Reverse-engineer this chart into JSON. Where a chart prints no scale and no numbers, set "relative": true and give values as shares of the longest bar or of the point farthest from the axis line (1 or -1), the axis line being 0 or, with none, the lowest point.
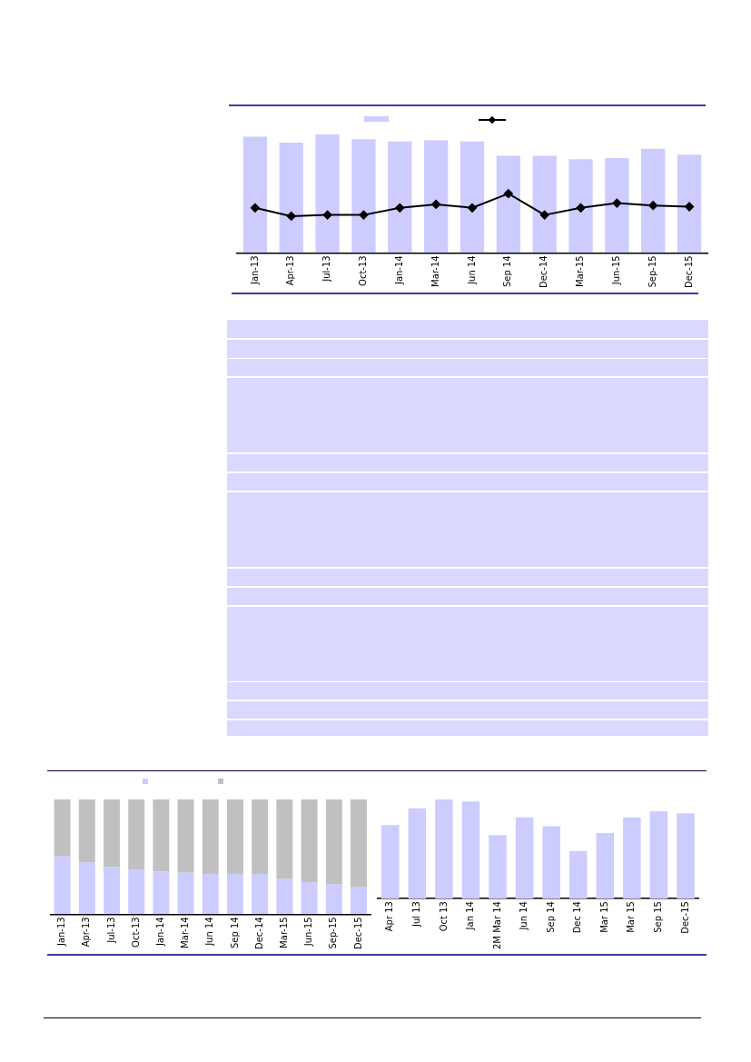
{
  "chart_data": [
    {
      "type": "bar",
      "relative": true,
      "categories": [
        "Jan-13",
        "Apr-13",
        "Jul-13",
        "Oct-13",
        "Jan-14",
        "Mar-14",
        "Jun 14",
        "Sep 14",
        "Dec-14",
        "Mar-15",
        "Jun-15",
        "Sep-15",
        "Dec-15"
      ],
      "series": [
        {
          "type": "bar",
          "color": "#ccccff",
          "values": [
            0.98,
            0.93,
            1,
            0.96,
            0.94,
            0.95,
            0.94,
            0.82,
            0.82,
            0.79,
            0.8,
            0.88,
            0.83
          ]
        },
        {
          "type": "line",
          "color": "#000000",
          "marker": "diamond",
          "line_style": "solid",
          "values": [
            0.38,
            0.31,
            0.32,
            0.32,
            0.38,
            0.41,
            0.38,
            0.5,
            0.32,
            0.38,
            0.42,
            0.4,
            0.39
          ]
        }
      ]
    },
    {
      "type": "bar",
      "relative": true,
      "stacked": true,
      "categories": [
        "Jan-13",
        "Apr-13",
        "Jul-13",
        "Oct-13",
        "Jan-14",
        "Mar-14",
        "Jun 14",
        "Sep 14",
        "Dec-14",
        "Mar-15",
        "Jun-15",
        "Sep-15",
        "Dec-15"
      ],
      "series": [
        {
          "color": "#ccccff",
          "values": [
            0.51,
            0.45,
            0.41,
            0.39,
            0.37,
            0.36,
            0.35,
            0.35,
            0.35,
            0.31,
            0.28,
            0.26,
            0.24
          ]
        },
        {
          "color": "#c0c0c0",
          "values": [
            0.49,
            0.55,
            0.59,
            0.61,
            0.63,
            0.64,
            0.65,
            0.65,
            0.65,
            0.69,
            0.72,
            0.74,
            0.76
          ]
        }
      ]
    },
    {
      "type": "bar",
      "relative": true,
      "categories": [
        "Apr 13",
        "Jul 13",
        "Oct 13",
        "Jan 14",
        "2M Mar 14",
        "Jun 14",
        "Sep 14",
        "Dec 14",
        "Mar 15",
        "Mar 15",
        "Sep 15",
        "Dec-15"
      ],
      "series": [
        {
          "color": "#ccccff",
          "values": [
            0.74,
            0.91,
            1,
            0.98,
            0.64,
            0.82,
            0.73,
            0.48,
            0.66,
            0.82,
            0.88,
            0.86
          ]
        }
      ]
    }
  ]
}
